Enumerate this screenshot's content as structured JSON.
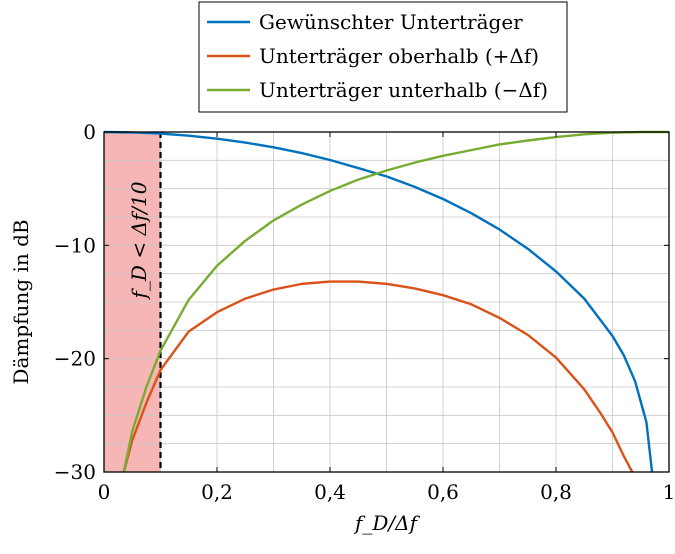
{
  "chart_data": {
    "type": "line",
    "xlabel": "f_D/Δf",
    "ylabel": "Dämpfung in dB",
    "xlim": [
      0,
      1
    ],
    "ylim": [
      -30,
      0
    ],
    "grid": true,
    "legend_position": "top",
    "x_ticks": [
      "0",
      "0,2",
      "0,4",
      "0,6",
      "0,8",
      "1"
    ],
    "y_ticks": [
      "0",
      "−10",
      "−20",
      "−30"
    ],
    "annotation": "f_D < Δf/10",
    "shaded_region": {
      "x_from": 0,
      "x_to": 0.1,
      "color": "#f7b6b6"
    },
    "threshold_line_x": 0.1,
    "series": [
      {
        "name": "Gewünschter Unterträger",
        "color": "#0072bd",
        "x": [
          0,
          0.05,
          0.1,
          0.15,
          0.2,
          0.25,
          0.3,
          0.35,
          0.4,
          0.45,
          0.5,
          0.55,
          0.6,
          0.65,
          0.7,
          0.75,
          0.8,
          0.85,
          0.9,
          0.92,
          0.94,
          0.96,
          0.97
        ],
        "values": [
          0,
          -0.04,
          -0.14,
          -0.33,
          -0.59,
          -0.93,
          -1.35,
          -1.86,
          -2.47,
          -3.18,
          -3.92,
          -4.84,
          -5.91,
          -7.16,
          -8.6,
          -10.3,
          -12.3,
          -14.7,
          -18.0,
          -19.7,
          -22.0,
          -25.6,
          -30
        ]
      },
      {
        "name": "Unterträger oberhalb (+Δf)",
        "color": "#d95319",
        "x": [
          0.035,
          0.05,
          0.075,
          0.1,
          0.15,
          0.2,
          0.25,
          0.3,
          0.35,
          0.4,
          0.45,
          0.5,
          0.55,
          0.6,
          0.65,
          0.7,
          0.75,
          0.8,
          0.85,
          0.88,
          0.9,
          0.92,
          0.935
        ],
        "values": [
          -30,
          -27.2,
          -23.9,
          -21.0,
          -17.6,
          -15.9,
          -14.7,
          -13.9,
          -13.4,
          -13.2,
          -13.2,
          -13.4,
          -13.8,
          -14.4,
          -15.2,
          -16.4,
          -17.9,
          -19.9,
          -22.7,
          -24.9,
          -26.5,
          -28.6,
          -30
        ]
      },
      {
        "name": "Unterträger unterhalb (−Δf)",
        "color": "#77ac30",
        "x": [
          0.035,
          0.05,
          0.075,
          0.1,
          0.15,
          0.2,
          0.25,
          0.3,
          0.35,
          0.4,
          0.45,
          0.5,
          0.55,
          0.6,
          0.65,
          0.7,
          0.75,
          0.8,
          0.85,
          0.9,
          0.95,
          1.0
        ],
        "values": [
          -30,
          -26.4,
          -22.5,
          -19.3,
          -14.8,
          -11.8,
          -9.6,
          -7.8,
          -6.4,
          -5.2,
          -4.2,
          -3.4,
          -2.7,
          -2.1,
          -1.6,
          -1.1,
          -0.75,
          -0.45,
          -0.2,
          -0.06,
          0,
          0
        ]
      }
    ]
  }
}
